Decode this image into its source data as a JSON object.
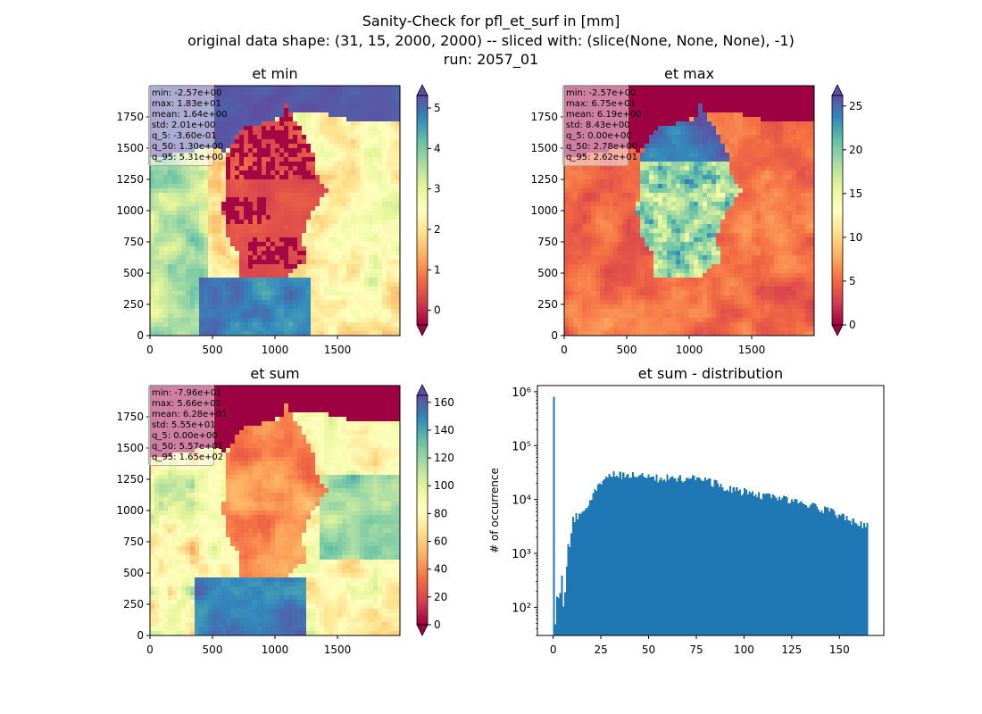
{
  "figure": {
    "title_lines": [
      "Sanity-Check for pfl_et_surf in [mm]",
      "original data shape: (31, 15, 2000, 2000) -- sliced with: (slice(None, None, None), -1)",
      "run: 2057_01"
    ]
  },
  "chart_data": [
    {
      "type": "heatmap",
      "title": "et min",
      "colormap": "Spectral",
      "xticks": [
        0,
        500,
        1000,
        1500
      ],
      "yticks": [
        0,
        250,
        500,
        750,
        1000,
        1250,
        1500,
        1750
      ],
      "xlim": [
        0,
        2000
      ],
      "ylim": [
        0,
        2000
      ],
      "colorbar": {
        "range": [
          -0.36,
          5.31
        ],
        "ticks": [
          0,
          1,
          2,
          3,
          4,
          5
        ],
        "extend": "both"
      },
      "stats": [
        "min: -2.57e+00",
        "max: 1.83e+01",
        "mean: 1.64e+00",
        "std: 2.01e+00",
        "q_5: -3.60e-01",
        "q_50: 1.30e+00",
        "q_95: 5.31e+00"
      ]
    },
    {
      "type": "heatmap",
      "title": "et max",
      "colormap": "Spectral",
      "xticks": [
        0,
        500,
        1000,
        1500
      ],
      "yticks": [
        0,
        250,
        500,
        750,
        1000,
        1250,
        1500,
        1750
      ],
      "xlim": [
        0,
        2000
      ],
      "ylim": [
        0,
        2000
      ],
      "colorbar": {
        "range": [
          0,
          26.2
        ],
        "ticks": [
          0,
          5,
          10,
          15,
          20,
          25
        ],
        "extend": "both"
      },
      "stats": [
        "min: -2.57e+00",
        "max: 6.75e+01",
        "mean: 6.19e+00",
        "std: 8.43e+00",
        "q_5: 0.00e+00",
        "q_50: 2.78e+00",
        "q_95: 2.62e+01"
      ]
    },
    {
      "type": "heatmap",
      "title": "et sum",
      "colormap": "Spectral",
      "xticks": [
        0,
        500,
        1000,
        1500
      ],
      "yticks": [
        0,
        250,
        500,
        750,
        1000,
        1250,
        1500,
        1750
      ],
      "xlim": [
        0,
        2000
      ],
      "ylim": [
        0,
        2000
      ],
      "colorbar": {
        "range": [
          0,
          165
        ],
        "ticks": [
          0,
          20,
          40,
          60,
          80,
          100,
          120,
          140,
          160
        ],
        "extend": "both"
      },
      "stats": [
        "min: -7.96e+01",
        "max: 5.66e+02",
        "mean: 6.28e+01",
        "std: 5.55e+01",
        "q_5: 0.00e+00",
        "q_50: 5.57e+01",
        "q_95: 1.65e+02"
      ]
    },
    {
      "type": "bar",
      "title": "et sum - distribution",
      "ylabel": "# of occurrence",
      "xlabel": "",
      "yscale": "log",
      "xlim": [
        -8.25,
        173.25
      ],
      "ylim": [
        30,
        1300000
      ],
      "xticks": [
        0,
        25,
        50,
        75,
        100,
        125,
        150
      ],
      "yticks": [
        100,
        1000,
        10000,
        100000,
        1000000
      ],
      "ytick_labels": [
        "10²",
        "10³",
        "10⁴",
        "10⁵",
        "10⁶"
      ],
      "bar_color": "#1f77b4",
      "bins_start": 0,
      "bin_width": 0.825,
      "peak": {
        "x": 0,
        "value": 800000
      },
      "profile": [
        [
          0.5,
          40
        ],
        [
          1.5,
          50
        ],
        [
          2.5,
          300
        ],
        [
          3.5,
          200
        ],
        [
          4.5,
          400
        ],
        [
          5.5,
          150
        ],
        [
          6.5,
          500
        ],
        [
          7.5,
          800
        ],
        [
          8.5,
          2000
        ],
        [
          9.5,
          3500
        ],
        [
          10.5,
          4000
        ],
        [
          12,
          4500
        ],
        [
          15,
          6000
        ],
        [
          18,
          8000
        ],
        [
          20,
          10000
        ],
        [
          22,
          14000
        ],
        [
          24,
          20000
        ],
        [
          27,
          28000
        ],
        [
          30,
          30000
        ],
        [
          35,
          29000
        ],
        [
          40,
          28000
        ],
        [
          45,
          27000
        ],
        [
          50,
          26500
        ],
        [
          55,
          25000
        ],
        [
          60,
          25000
        ],
        [
          65,
          25500
        ],
        [
          70,
          25000
        ],
        [
          75,
          24000
        ],
        [
          80,
          22000
        ],
        [
          85,
          20000
        ],
        [
          90,
          17000
        ],
        [
          95,
          15000
        ],
        [
          100,
          14000
        ],
        [
          105,
          13000
        ],
        [
          110,
          12000
        ],
        [
          115,
          11000
        ],
        [
          120,
          10000
        ],
        [
          125,
          10000
        ],
        [
          130,
          8500
        ],
        [
          135,
          7500
        ],
        [
          140,
          7000
        ],
        [
          145,
          6000
        ],
        [
          150,
          5000
        ],
        [
          155,
          4200
        ],
        [
          160,
          3500
        ],
        [
          163,
          3500
        ]
      ]
    }
  ],
  "colors": {
    "axis": "#000000",
    "histogram": "#1f77b4"
  }
}
